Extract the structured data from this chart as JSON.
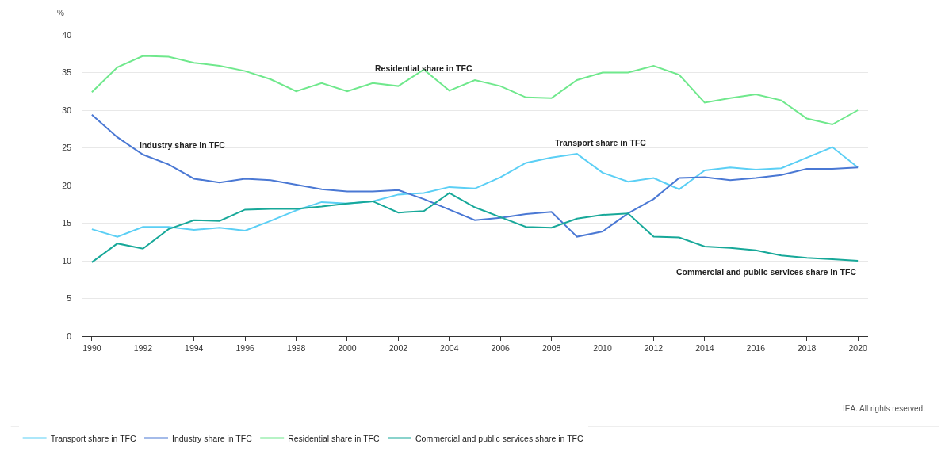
{
  "chart_data": {
    "type": "line",
    "ylabel": "%",
    "x": [
      1990,
      1991,
      1992,
      1993,
      1994,
      1995,
      1996,
      1997,
      1998,
      1999,
      2000,
      2001,
      2002,
      2003,
      2004,
      2005,
      2006,
      2007,
      2008,
      2009,
      2010,
      2011,
      2012,
      2013,
      2014,
      2015,
      2016,
      2017,
      2018,
      2019,
      2020
    ],
    "series": [
      {
        "name": "Transport share in TFC",
        "color": "#5bcff5",
        "values": [
          14.2,
          13.2,
          14.5,
          14.5,
          14.1,
          14.4,
          14.0,
          15.3,
          16.7,
          17.8,
          17.6,
          17.9,
          18.8,
          19.0,
          19.8,
          19.6,
          21.1,
          23.0,
          23.7,
          24.2,
          21.7,
          20.5,
          21.0,
          19.5,
          22.0,
          22.4,
          22.1,
          22.3,
          23.7,
          25.1,
          22.4
        ]
      },
      {
        "name": "Industry share in TFC",
        "color": "#4a78d4",
        "values": [
          29.4,
          26.4,
          24.1,
          22.8,
          20.9,
          20.4,
          20.9,
          20.7,
          20.1,
          19.5,
          19.2,
          19.2,
          19.4,
          18.2,
          16.8,
          15.4,
          15.7,
          16.2,
          16.5,
          13.2,
          13.9,
          16.3,
          18.2,
          21.0,
          21.1,
          20.7,
          21.0,
          21.4,
          22.2,
          22.2,
          22.4
        ]
      },
      {
        "name": "Residential share in TFC",
        "color": "#6fe88c",
        "values": [
          32.4,
          35.7,
          37.2,
          37.1,
          36.3,
          35.9,
          35.2,
          34.1,
          32.5,
          33.6,
          32.5,
          33.6,
          33.2,
          35.4,
          32.6,
          34.0,
          33.2,
          31.7,
          31.6,
          34.0,
          35.0,
          35.0,
          35.9,
          34.7,
          31.0,
          31.6,
          32.1,
          31.3,
          28.9,
          28.1,
          30.0
        ]
      },
      {
        "name": "Commercial and public services share in TFC",
        "color": "#17a899",
        "values": [
          9.8,
          12.3,
          11.6,
          14.2,
          15.4,
          15.3,
          16.8,
          16.9,
          16.9,
          17.2,
          17.6,
          17.9,
          16.4,
          16.6,
          19.0,
          17.1,
          15.8,
          14.5,
          14.4,
          15.6,
          16.1,
          16.3,
          13.2,
          13.1,
          11.9,
          11.7,
          11.4,
          10.7,
          10.4,
          10.2,
          10.0
        ]
      }
    ],
    "xlim": [
      1989.6,
      2020.4
    ],
    "xticks": [
      1990,
      1992,
      1994,
      1996,
      1998,
      2000,
      2002,
      2004,
      2006,
      2008,
      2010,
      2012,
      2014,
      2016,
      2018,
      2020
    ],
    "ylim": [
      0,
      40
    ],
    "yticks": [
      0,
      5,
      10,
      15,
      20,
      25,
      30,
      35,
      40
    ],
    "grid": "y",
    "legend": "bottom",
    "marker": "none",
    "line_style": "solid",
    "annotations": [
      {
        "text": "Residential share in TFC",
        "x": 2003,
        "y": 35.4
      },
      {
        "text": "Industry share in TFC",
        "x": 1992,
        "y": 24.1
      },
      {
        "text": "Transport share in TFC",
        "x": 2009,
        "y": 24.2
      },
      {
        "text": "Commercial and public services share in TFC",
        "x": 2020,
        "y": 10.0
      },
      "IEA. All rights reserved."
    ]
  }
}
